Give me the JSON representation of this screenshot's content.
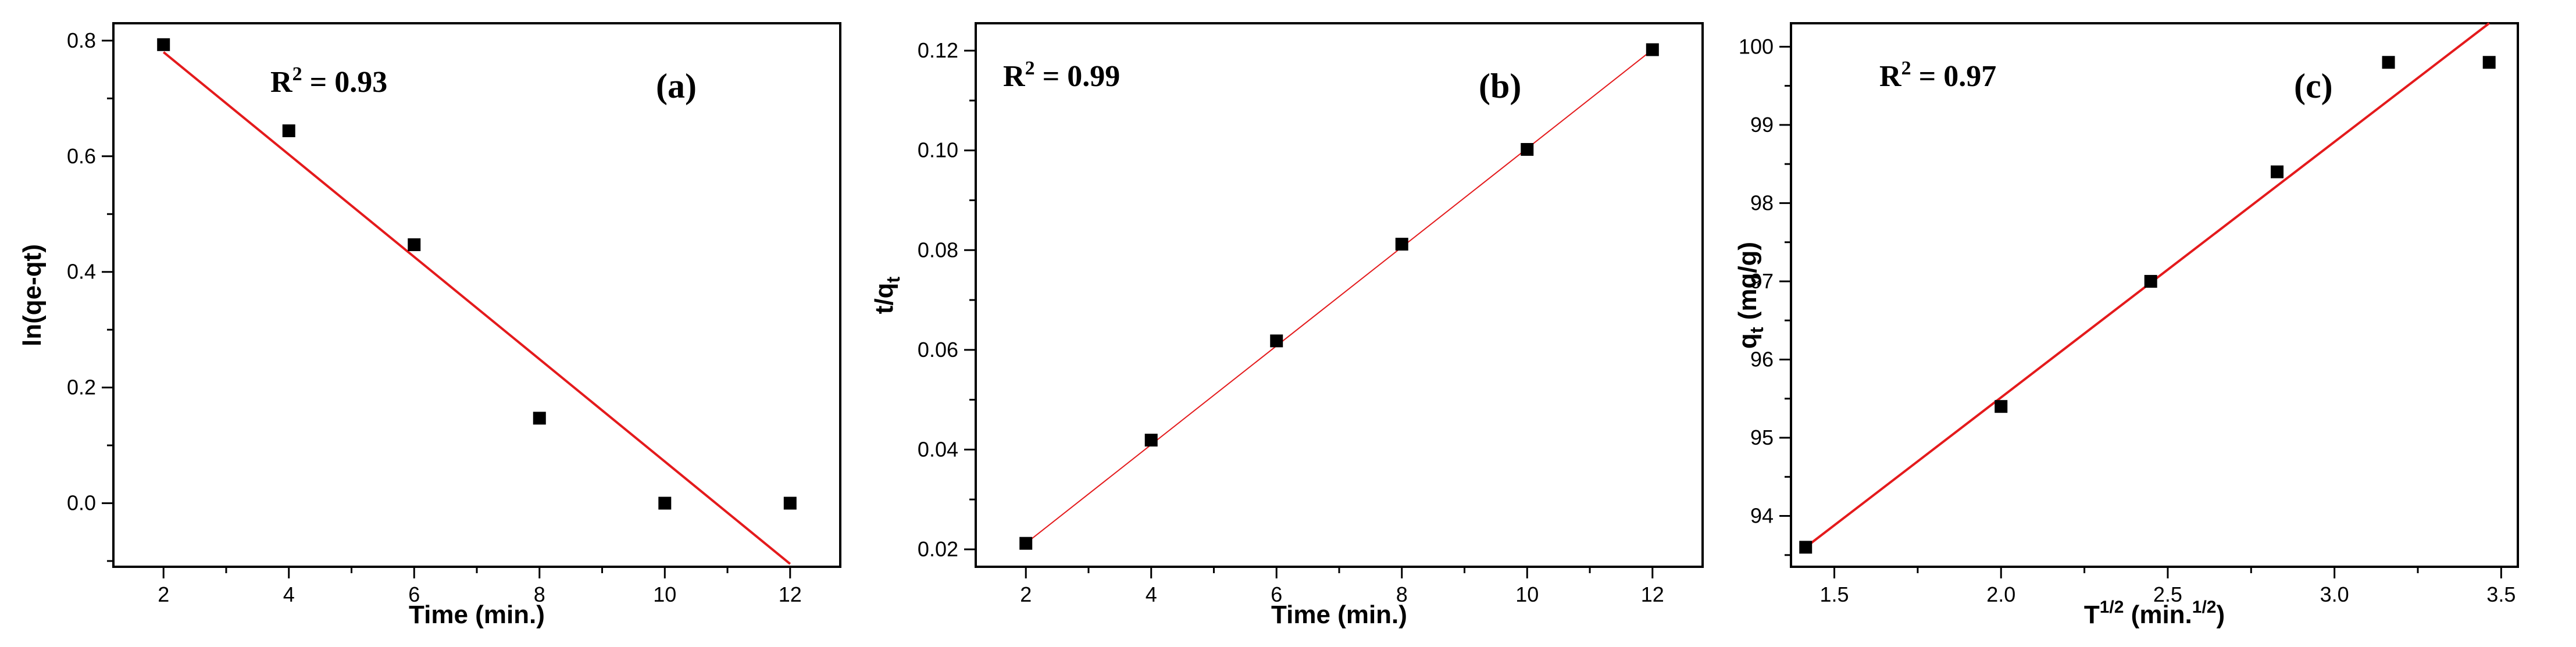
{
  "chart_data": [
    {
      "type": "scatter",
      "panel_label": "(a)",
      "annotation": {
        "r2_prefix": "R",
        "r2_sup": "2",
        "r2_value": " = 0.93"
      },
      "xlabel": "Time (min.)",
      "ylabel": "ln(qe-qt)",
      "xlim": [
        1.2,
        12.8
      ],
      "ylim": [
        -0.11,
        0.83
      ],
      "xticks": [
        2,
        4,
        6,
        8,
        10,
        12
      ],
      "xtick_labels": [
        "2",
        "4",
        "6",
        "8",
        "10",
        "12"
      ],
      "yticks": [
        0.0,
        0.2,
        0.4,
        0.6,
        0.8
      ],
      "ytick_labels": [
        "0.0",
        "0.2",
        "0.4",
        "0.6",
        "0.8"
      ],
      "x": [
        2,
        4,
        6,
        8,
        10,
        12
      ],
      "y": [
        0.793,
        0.644,
        0.447,
        0.147,
        0.0,
        0.0
      ],
      "fit_line": {
        "x": [
          2,
          12
        ],
        "y": [
          0.78,
          -0.105
        ],
        "color": "#e41a1c"
      },
      "marker_color": "#000000"
    },
    {
      "type": "scatter",
      "panel_label": "(b)",
      "annotation": {
        "r2_prefix": "R",
        "r2_sup": "2",
        "r2_value": " = 0.99"
      },
      "xlabel": "Time (min.)",
      "ylabel_main": "t/q",
      "ylabel_sub": "t",
      "xlim": [
        1.2,
        12.8
      ],
      "ylim": [
        0.0165,
        0.1255
      ],
      "xticks": [
        2,
        4,
        6,
        8,
        10,
        12
      ],
      "xtick_labels": [
        "2",
        "4",
        "6",
        "8",
        "10",
        "12"
      ],
      "yticks": [
        0.02,
        0.04,
        0.06,
        0.08,
        0.1,
        0.12
      ],
      "ytick_labels": [
        "0.02",
        "0.04",
        "0.06",
        "0.08",
        "0.10",
        "0.12"
      ],
      "x": [
        2,
        4,
        6,
        8,
        10,
        12
      ],
      "y": [
        0.0212,
        0.0419,
        0.0618,
        0.0812,
        0.1002,
        0.1202
      ],
      "fit_line": {
        "x": [
          2,
          12
        ],
        "y": [
          0.0212,
          0.1202
        ],
        "color": "#e41a1c"
      },
      "marker_color": "#000000"
    },
    {
      "type": "scatter",
      "panel_label": "(c)",
      "annotation": {
        "r2_prefix": "R",
        "r2_sup": "2",
        "r2_value": " = 0.97"
      },
      "xlabel_main": "T",
      "xlabel_sup": "1/2",
      "xlabel_mid": " (min.",
      "xlabel_sup2": "1/2",
      "xlabel_end": ")",
      "ylabel_main": "q",
      "ylabel_sub": "t",
      "ylabel_end": " (mg/g)",
      "xlim": [
        1.37,
        3.55
      ],
      "ylim": [
        93.35,
        100.3
      ],
      "xticks": [
        1.5,
        2.0,
        2.5,
        3.0,
        3.5
      ],
      "xtick_labels": [
        "1.5",
        "2.0",
        "2.5",
        "3.0",
        "3.5"
      ],
      "yticks": [
        94,
        95,
        96,
        97,
        98,
        99,
        100
      ],
      "ytick_labels": [
        "94",
        "95",
        "96",
        "97",
        "98",
        "99",
        "100"
      ],
      "x": [
        1.414,
        2.0,
        2.449,
        2.828,
        3.162,
        3.464
      ],
      "y": [
        93.6,
        95.4,
        97.0,
        98.4,
        99.8,
        99.8
      ],
      "fit_line": {
        "x": [
          1.414,
          3.464
        ],
        "y": [
          93.6,
          100.3
        ],
        "color": "#e41a1c"
      },
      "marker_color": "#000000"
    }
  ]
}
